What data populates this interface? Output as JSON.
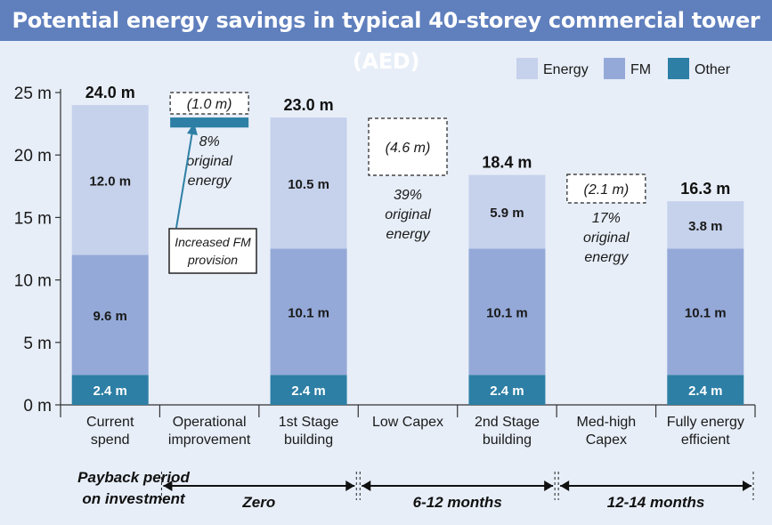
{
  "title": "Potential energy savings in typical 40-storey commercial tower (AED)",
  "colors": {
    "energy": "#c6d2ec",
    "fm": "#94a9d8",
    "other": "#2d7fa5",
    "background": "#e7eef8",
    "title_bar": "#5f7fbd"
  },
  "legend": [
    "Energy",
    "FM",
    "Other"
  ],
  "chart_data": {
    "type": "bar",
    "stacked": true,
    "ylim": [
      0,
      25
    ],
    "yticks": [
      {
        "value": 0,
        "label": "0 m"
      },
      {
        "value": 5,
        "label": "5 m"
      },
      {
        "value": 10,
        "label": "10 m"
      },
      {
        "value": 15,
        "label": "15 m"
      },
      {
        "value": 20,
        "label": "20 m"
      },
      {
        "value": 25,
        "label": "25 m"
      }
    ],
    "categories": [
      [
        "Current",
        "spend"
      ],
      [
        "Operational",
        "improvement"
      ],
      [
        "1st Stage",
        "building"
      ],
      [
        "Low Capex"
      ],
      [
        "2nd Stage",
        "building"
      ],
      [
        "Med-high",
        "Capex"
      ],
      [
        "Fully energy",
        "efficient"
      ]
    ],
    "bars": [
      {
        "index": 0,
        "other": 2.4,
        "fm": 9.6,
        "energy": 12.0,
        "total": 24.0,
        "other_label": "2.4 m",
        "fm_label": "9.6 m",
        "energy_label": "12.0 m",
        "total_label": "24.0 m"
      },
      {
        "index": 2,
        "other": 2.4,
        "fm": 10.1,
        "energy": 10.5,
        "total": 23.0,
        "other_label": "2.4 m",
        "fm_label": "10.1 m",
        "energy_label": "10.5 m",
        "total_label": "23.0 m"
      },
      {
        "index": 4,
        "other": 2.4,
        "fm": 10.1,
        "energy": 5.9,
        "total": 18.4,
        "other_label": "2.4 m",
        "fm_label": "10.1 m",
        "energy_label": "5.9 m",
        "total_label": "18.4 m"
      },
      {
        "index": 6,
        "other": 2.4,
        "fm": 10.1,
        "energy": 3.8,
        "total": 16.3,
        "other_label": "2.4 m",
        "fm_label": "10.1 m",
        "energy_label": "3.8 m",
        "total_label": "16.3 m"
      }
    ],
    "savings": [
      {
        "index": 1,
        "label": "(1.0 m)",
        "top_value": 24.0,
        "bottom_value": 23.0,
        "note": [
          "8%",
          "original",
          "energy"
        ]
      },
      {
        "index": 3,
        "label": "(4.6 m)",
        "top_value": 23.0,
        "bottom_value": 18.4,
        "note": [
          "39%",
          "original",
          "energy"
        ]
      },
      {
        "index": 5,
        "label": "(2.1 m)",
        "top_value": 18.4,
        "bottom_value": 16.3,
        "note": [
          "17%",
          "original",
          "energy"
        ]
      }
    ],
    "fm_provision_bar": {
      "index": 1,
      "from": 22.2,
      "to": 23.0
    },
    "annotation": [
      "Increased FM",
      "provision"
    ],
    "payback": {
      "label": [
        "Payback period",
        "on investment"
      ],
      "periods": [
        {
          "from_index": 2,
          "label": "Zero"
        },
        {
          "from_index": 4,
          "label": "6-12 months"
        },
        {
          "from_index": 6,
          "label": "12-14 months"
        }
      ]
    }
  }
}
